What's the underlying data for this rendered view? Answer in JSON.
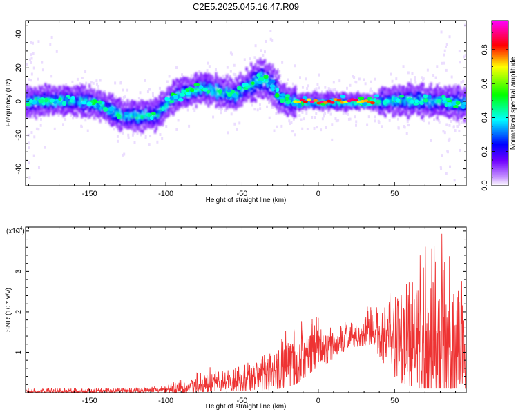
{
  "title": "C2E5.2025.045.16.47.R09",
  "chart_data": [
    {
      "type": "heatmap",
      "name": "spectrogram",
      "xlabel": "Height of straight line (km)",
      "ylabel": "Frequency (Hz)",
      "xlim": [
        -192,
        97
      ],
      "ylim": [
        -50,
        48
      ],
      "xticks": [
        -150,
        -100,
        -50,
        0,
        50
      ],
      "yticks": [
        -40,
        -20,
        0,
        20,
        40
      ],
      "colorbar": {
        "label": "Normalized spectral amplitude",
        "range": [
          0,
          0.97
        ],
        "ticks": [
          0.0,
          0.2,
          0.4,
          0.6,
          0.8
        ],
        "tick_labels": [
          "0.0",
          "0.2",
          "0.4",
          "0.6",
          "0.8"
        ],
        "colormap": [
          "#ffffff",
          "#c896ff",
          "#7000ff",
          "#0000ff",
          "#00ffff",
          "#00ff00",
          "#ffff00",
          "#ff0000",
          "#ff00ff"
        ]
      },
      "band_center_hz": [
        [
          -190,
          0
        ],
        [
          -170,
          1
        ],
        [
          -150,
          0
        ],
        [
          -140,
          -3
        ],
        [
          -130,
          -8
        ],
        [
          -115,
          -9
        ],
        [
          -105,
          -7
        ],
        [
          -95,
          3
        ],
        [
          -85,
          6
        ],
        [
          -75,
          8
        ],
        [
          -65,
          6
        ],
        [
          -55,
          4
        ],
        [
          -45,
          10
        ],
        [
          -37,
          14
        ],
        [
          -30,
          10
        ],
        [
          -25,
          3
        ],
        [
          -18,
          0
        ],
        [
          0,
          0
        ],
        [
          20,
          0
        ],
        [
          40,
          0
        ],
        [
          60,
          1
        ],
        [
          80,
          0
        ],
        [
          97,
          -1
        ]
      ],
      "peak_ridge": {
        "x_range": [
          -15,
          37
        ],
        "frequency_hz": 0,
        "amplitude": 0.9
      }
    },
    {
      "type": "line",
      "name": "snr",
      "xlabel": "Height of straight line (km)",
      "ylabel": "SNR (10 * v/v)",
      "y_multiplier": "(x10^4)",
      "y_multiplier_base": "(x10",
      "y_multiplier_exp": "4",
      "xlim": [
        -192,
        97
      ],
      "ylim": [
        0,
        4.1
      ],
      "xticks": [
        -150,
        -100,
        -50,
        0,
        50
      ],
      "yticks": [
        1,
        2,
        3,
        4
      ],
      "color": "#ee3333",
      "series": [
        {
          "x": [
            -192,
            -150,
            -120,
            -100,
            -85,
            -75,
            -60,
            -45,
            -35,
            -25,
            -15,
            -5,
            5,
            20,
            35,
            50,
            65,
            80,
            97
          ],
          "y_mean": [
            0.03,
            0.04,
            0.05,
            0.07,
            0.12,
            0.2,
            0.25,
            0.3,
            0.4,
            0.5,
            0.85,
            1.0,
            1.1,
            1.35,
            1.5,
            1.4,
            1.2,
            1.15,
            1.1
          ],
          "y_max": [
            0.1,
            0.12,
            0.12,
            0.2,
            0.4,
            0.6,
            0.7,
            0.8,
            1.0,
            1.3,
            2.0,
            1.9,
            1.8,
            1.75,
            2.3,
            2.5,
            3.4,
            4.1,
            2.8
          ],
          "y_min": [
            0.0,
            0.0,
            0.0,
            0.0,
            0.0,
            0.02,
            0.05,
            0.05,
            0.05,
            0.1,
            0.2,
            0.5,
            0.7,
            1.1,
            1.2,
            0.3,
            0.1,
            0.1,
            0.1
          ]
        }
      ]
    }
  ]
}
